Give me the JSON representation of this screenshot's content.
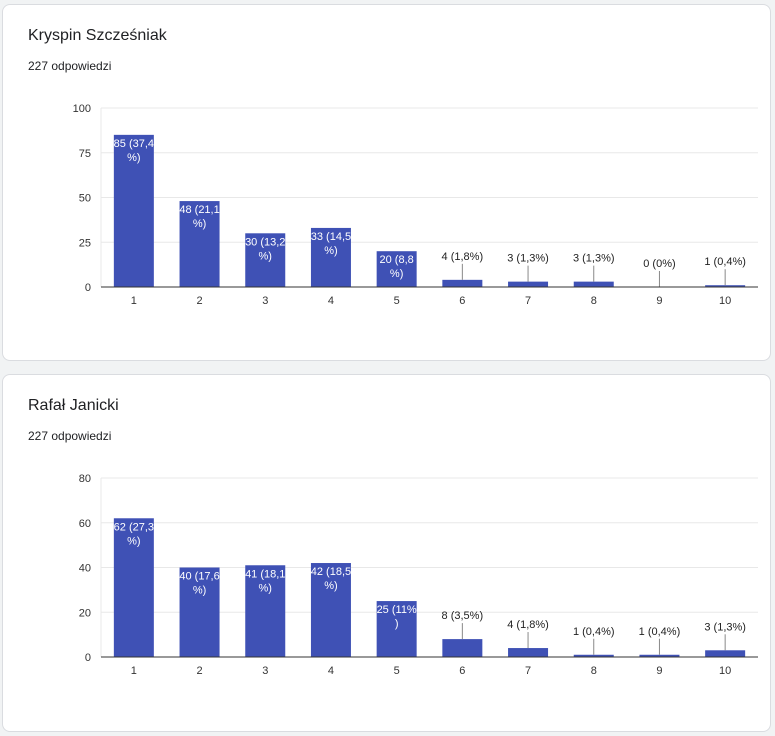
{
  "colors": {
    "bar": "#3f51b5",
    "grid": "#e8e8e8",
    "axis": "#333333",
    "label_inside": "#ffffff",
    "label_outside": "#222222"
  },
  "chart_data": [
    {
      "type": "bar",
      "title": "Kryspin Szcześniak",
      "subtitle": "227 odpowiedzi",
      "categories": [
        "1",
        "2",
        "3",
        "4",
        "5",
        "6",
        "7",
        "8",
        "9",
        "10"
      ],
      "values": [
        85,
        48,
        30,
        33,
        20,
        4,
        3,
        3,
        0,
        1
      ],
      "data_labels": [
        "85 (37,4%)",
        "48 (21,1%)",
        "30 (13,2%)",
        "33 (14,5%)",
        "20 (8,8%)",
        "4 (1,8%)",
        "3 (1,3%)",
        "3 (1,3%)",
        "0 (0%)",
        "1 (0,4%)"
      ],
      "yticks": [
        0,
        25,
        50,
        75,
        100
      ],
      "ylim": [
        0,
        100
      ],
      "grid": true
    },
    {
      "type": "bar",
      "title": "Rafał Janicki",
      "subtitle": "227 odpowiedzi",
      "categories": [
        "1",
        "2",
        "3",
        "4",
        "5",
        "6",
        "7",
        "8",
        "9",
        "10"
      ],
      "values": [
        62,
        40,
        41,
        42,
        25,
        8,
        4,
        1,
        1,
        3
      ],
      "data_labels": [
        "62 (27,3%)",
        "40 (17,6%)",
        "41 (18,1%)",
        "42 (18,5%)",
        "25 (11%)",
        "8 (3,5%)",
        "4 (1,8%)",
        "1 (0,4%)",
        "1 (0,4%)",
        "3 (1,3%)"
      ],
      "yticks": [
        0,
        20,
        40,
        60,
        80
      ],
      "ylim": [
        0,
        80
      ],
      "grid": true
    }
  ]
}
